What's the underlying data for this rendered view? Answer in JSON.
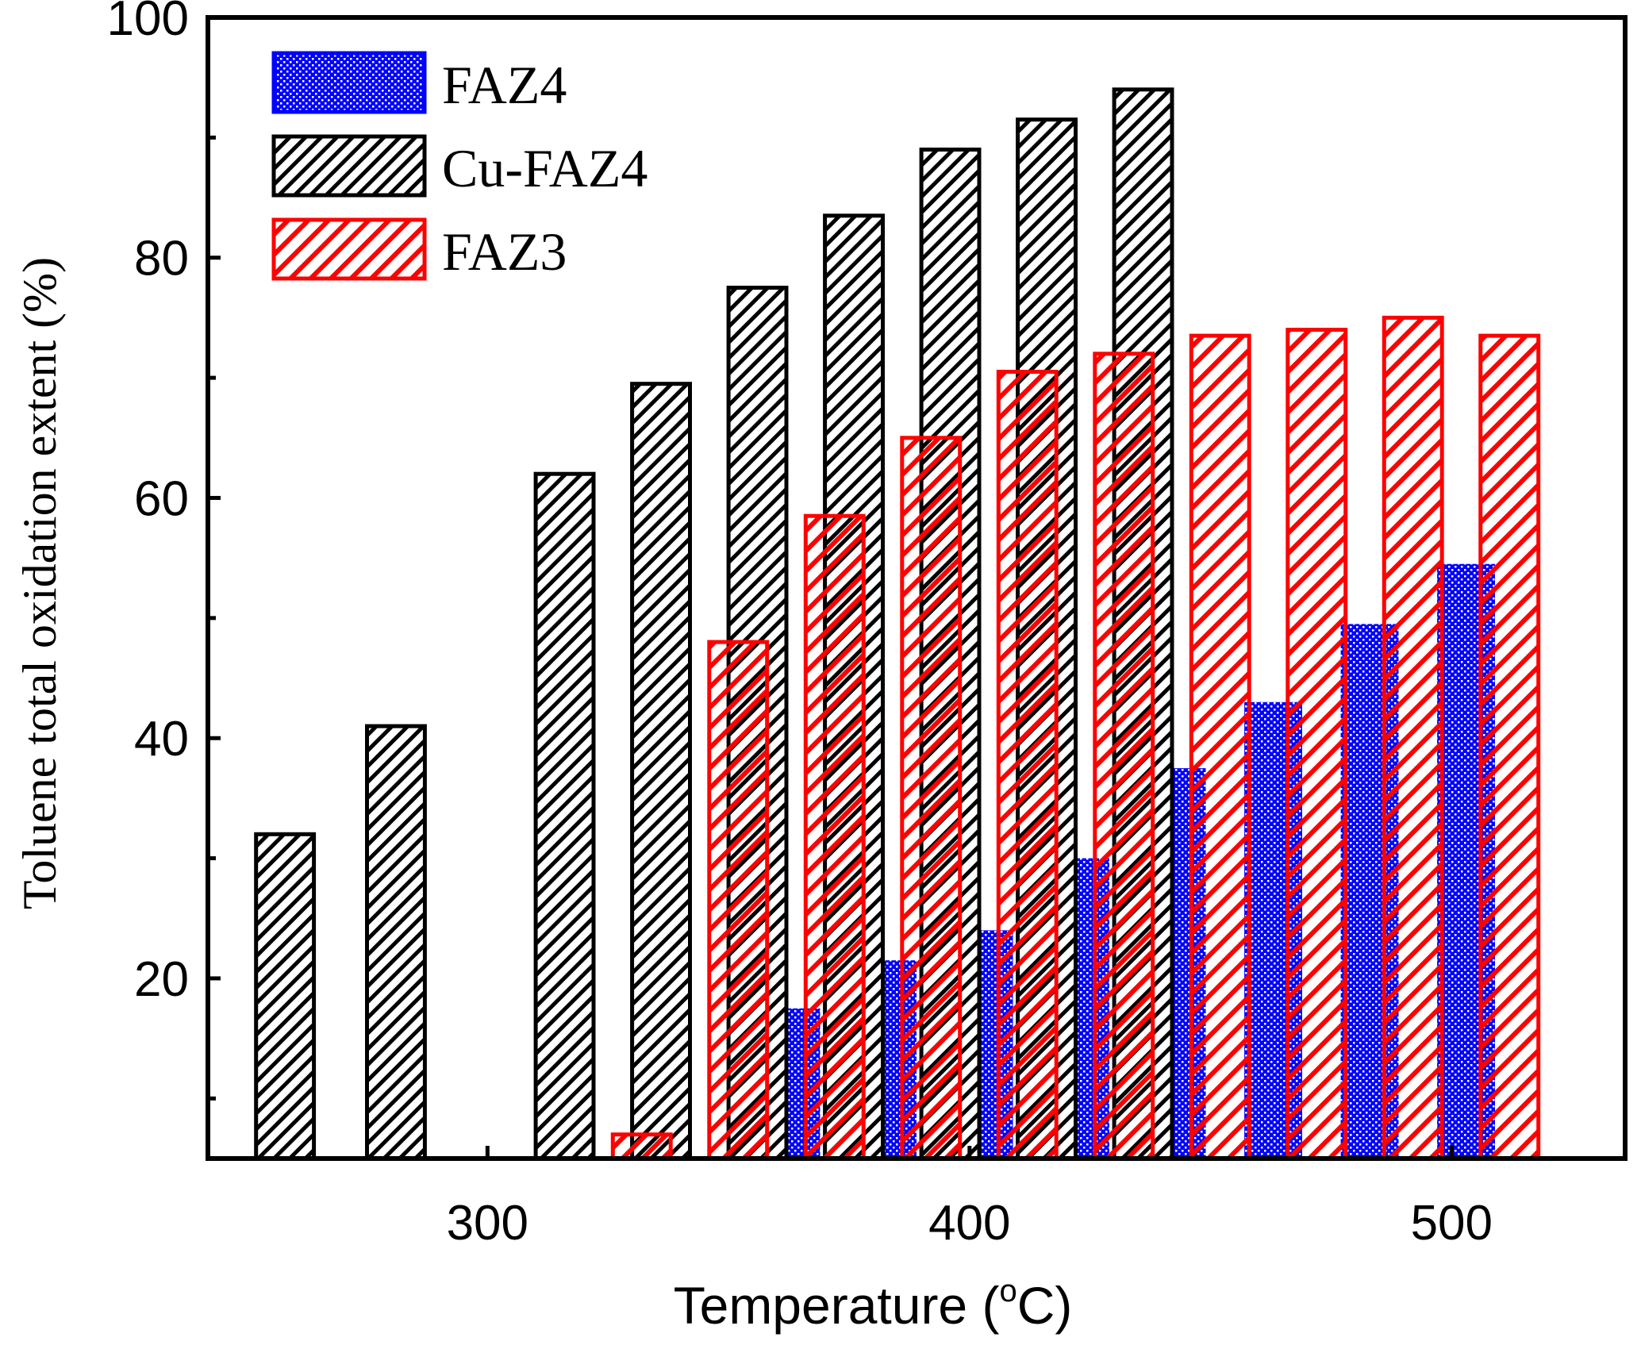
{
  "chart_data": {
    "type": "bar",
    "title": "",
    "xlabel": "Temperature (",
    "xlabel_degree": "o",
    "xlabel_unit": "C)",
    "ylabel": "Toluene total oxidation extent (%)",
    "xlim": [
      242,
      536
    ],
    "ylim": [
      5,
      100
    ],
    "bar_width_degC": 12,
    "x_ticks": [
      300,
      400,
      500
    ],
    "x_tick_labels": [
      "300",
      "400",
      "500"
    ],
    "y_ticks": [
      20,
      40,
      60,
      80,
      100
    ],
    "y_tick_labels": [
      "20",
      "40",
      "60",
      "80",
      "100"
    ],
    "y_minor_ticks": [
      10,
      30,
      50,
      70,
      90
    ],
    "legend_position": "top-left",
    "series": [
      {
        "name": "FAZ4",
        "color": "#0000ff",
        "pattern": "dots",
        "x": [
          363,
          383,
          403,
          423,
          443,
          463,
          483,
          503
        ],
        "values": [
          17.5,
          21.5,
          24,
          30,
          37.5,
          43,
          49.5,
          54.5
        ]
      },
      {
        "name": "Cu-FAZ4",
        "color": "#000000",
        "pattern": "hatch",
        "x": [
          258,
          281,
          316,
          336,
          356,
          376,
          396,
          416,
          436
        ],
        "values": [
          32,
          41,
          62,
          69.5,
          77.5,
          83.5,
          89,
          91.5,
          94
        ]
      },
      {
        "name": "FAZ3",
        "color": "#ff0000",
        "pattern": "hatch",
        "x": [
          332,
          352,
          372,
          392,
          412,
          432,
          452,
          472,
          492,
          512
        ],
        "values": [
          7,
          48,
          58.5,
          65,
          70.5,
          72,
          73.5,
          74,
          75,
          73.5
        ]
      }
    ]
  }
}
